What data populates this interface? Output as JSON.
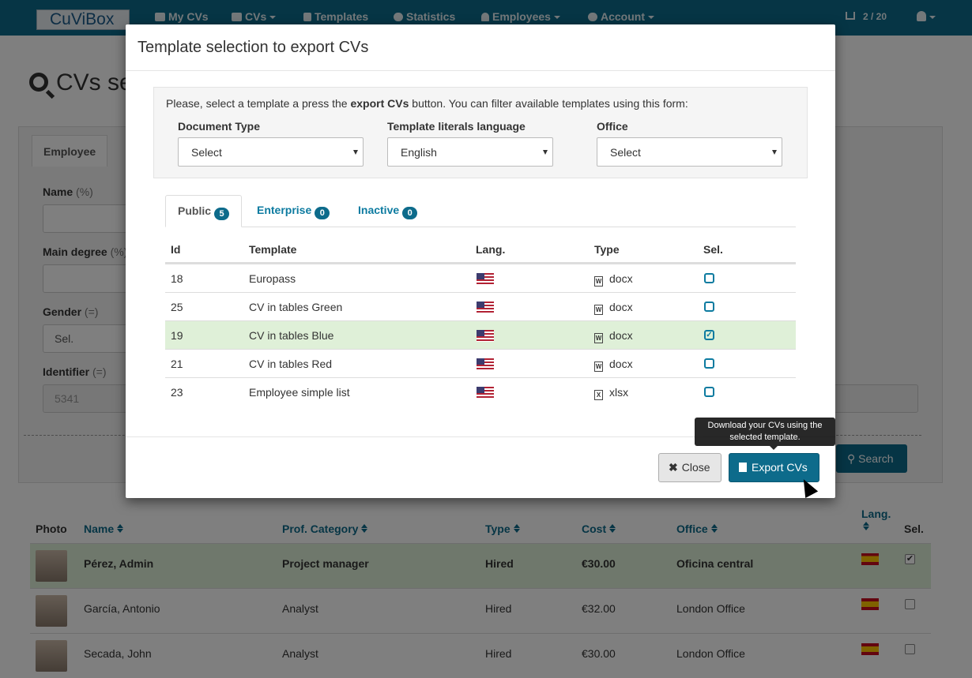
{
  "navbar": {
    "brand": "CuViBox",
    "items": [
      {
        "label": "My CVs",
        "icon": "briefcase-icon"
      },
      {
        "label": "CVs",
        "icon": "users-icon"
      },
      {
        "label": "Templates",
        "icon": "file-text-icon"
      },
      {
        "label": "Statistics",
        "icon": "pie-chart-icon"
      },
      {
        "label": "Employees",
        "icon": "user-icon"
      },
      {
        "label": "Account",
        "icon": "gear-icon"
      }
    ],
    "cart": "2 / 20"
  },
  "background": {
    "page_title": "CVs se",
    "tab": "Employee",
    "fields": {
      "name_label": "Name",
      "name_hint": "(%)",
      "degree_label": "Main degree",
      "degree_hint": "(%)",
      "gender_label": "Gender",
      "gender_hint": "(=)",
      "gender_value": "Sel.",
      "identifier_label": "Identifier",
      "identifier_hint": "(=)",
      "identifier_value": "5341"
    },
    "search_button": "Search",
    "results": {
      "headers": {
        "photo": "Photo",
        "name": "Name",
        "category": "Prof. Category",
        "type": "Type",
        "cost": "Cost",
        "office": "Office",
        "lang": "Lang.",
        "sel": "Sel."
      },
      "rows": [
        {
          "name": "Pérez, Admin",
          "category": "Project manager",
          "type": "Hired",
          "cost": "€30.00",
          "office": "Oficina central",
          "checked": "✔"
        },
        {
          "name": "García, Antonio",
          "category": "Analyst",
          "type": "Hired",
          "cost": "€32.00",
          "office": "London Office",
          "checked": ""
        },
        {
          "name": "Secada, John",
          "category": "Analyst",
          "type": "Hired",
          "cost": "€30.00",
          "office": "London Office",
          "checked": ""
        }
      ]
    }
  },
  "modal": {
    "title": "Template selection to export CVs",
    "intro_before": "Please, select a template a press the ",
    "intro_bold": "export CVs",
    "intro_after": " button. You can filter available templates using this form:",
    "filters": {
      "doc_type_label": "Document Type",
      "doc_type_value": "Select",
      "language_label": "Template literals language",
      "language_value": "English",
      "office_label": "Office",
      "office_value": "Select"
    },
    "tabs": [
      {
        "label": "Public",
        "count": "5"
      },
      {
        "label": "Enterprise",
        "count": "0"
      },
      {
        "label": "Inactive",
        "count": "0"
      }
    ],
    "table": {
      "headers": {
        "id": "Id",
        "template": "Template",
        "lang": "Lang.",
        "type": "Type",
        "sel": "Sel."
      },
      "rows": [
        {
          "id": "18",
          "template": "Europass",
          "type": "docx",
          "type_icon": "W",
          "selected": ""
        },
        {
          "id": "25",
          "template": "CV in tables Green",
          "type": "docx",
          "type_icon": "W",
          "selected": ""
        },
        {
          "id": "19",
          "template": "CV in tables Blue",
          "type": "docx",
          "type_icon": "W",
          "selected": "✓"
        },
        {
          "id": "21",
          "template": "CV in tables Red",
          "type": "docx",
          "type_icon": "W",
          "selected": ""
        },
        {
          "id": "23",
          "template": "Employee simple list",
          "type": "xlsx",
          "type_icon": "X",
          "selected": ""
        }
      ]
    },
    "tooltip": "Download your CVs using the selected template.",
    "close_button": "Close",
    "export_button": "Export CVs"
  }
}
